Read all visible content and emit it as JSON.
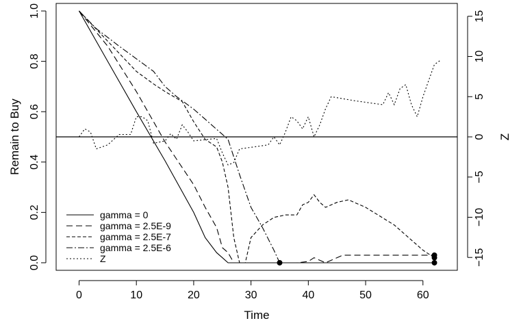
{
  "chart_data": {
    "type": "line",
    "xlabel": "Time",
    "ylabel": "Remain to Buy",
    "y2label": "Z",
    "xlim": [
      -4,
      66
    ],
    "ylim": [
      -0.03,
      1.03
    ],
    "y2lim": [
      -16.6,
      16.6
    ],
    "x_ticks": [
      "0",
      "10",
      "20",
      "30",
      "40",
      "50",
      "60"
    ],
    "y_ticks": [
      "0.0",
      "0.2",
      "0.4",
      "0.6",
      "0.8",
      "1.0"
    ],
    "y2_ticks": [
      "-15",
      "-10",
      "-5",
      "0",
      "5",
      "10",
      "15"
    ],
    "reference_line_y": 0.5,
    "legend_position": "bottom-left",
    "series": [
      {
        "name": "gamma = 0",
        "axis": "left",
        "dash": "",
        "points": [
          [
            0,
            1.0
          ],
          [
            5,
            0.8
          ],
          [
            10,
            0.6
          ],
          [
            15,
            0.405
          ],
          [
            20,
            0.2
          ],
          [
            22,
            0.1
          ],
          [
            24,
            0.04
          ],
          [
            25,
            0.02
          ],
          [
            26,
            0.0
          ],
          [
            62,
            0.0
          ]
        ]
      },
      {
        "name": "gamma = 2.5E-9",
        "axis": "left",
        "dash": "9,5",
        "points": [
          [
            0,
            1.0
          ],
          [
            5,
            0.86
          ],
          [
            10,
            0.68
          ],
          [
            15,
            0.48
          ],
          [
            20,
            0.31
          ],
          [
            22,
            0.22
          ],
          [
            24,
            0.14
          ],
          [
            25,
            0.06
          ],
          [
            26,
            0.04
          ],
          [
            27,
            0.0
          ],
          [
            38,
            0.0
          ],
          [
            40,
            0.005
          ],
          [
            41,
            0.02
          ],
          [
            43,
            0.0
          ],
          [
            46,
            0.03
          ],
          [
            62,
            0.03
          ]
        ]
      },
      {
        "name": "gamma = 2.5E-7",
        "axis": "left",
        "dash": "5,3",
        "points": [
          [
            0,
            1.0
          ],
          [
            5,
            0.88
          ],
          [
            10,
            0.76
          ],
          [
            13,
            0.71
          ],
          [
            15,
            0.68
          ],
          [
            18,
            0.64
          ],
          [
            20,
            0.56
          ],
          [
            22,
            0.49
          ],
          [
            24,
            0.46
          ],
          [
            25,
            0.4
          ],
          [
            26,
            0.3
          ],
          [
            27,
            0.1
          ],
          [
            28,
            0.0
          ],
          [
            29,
            0.0
          ],
          [
            30,
            0.1
          ],
          [
            32,
            0.15
          ],
          [
            34,
            0.18
          ],
          [
            36,
            0.19
          ],
          [
            38,
            0.19
          ],
          [
            39,
            0.23
          ],
          [
            40,
            0.24
          ],
          [
            41,
            0.27
          ],
          [
            42,
            0.24
          ],
          [
            43,
            0.22
          ],
          [
            45,
            0.24
          ],
          [
            47,
            0.25
          ],
          [
            50,
            0.22
          ],
          [
            55,
            0.15
          ],
          [
            60,
            0.05
          ],
          [
            62,
            0.02
          ]
        ]
      },
      {
        "name": "gamma = 2.5E-6",
        "axis": "left",
        "dash": "9,3,2,3",
        "points": [
          [
            0,
            1.0
          ],
          [
            3,
            0.93
          ],
          [
            7,
            0.86
          ],
          [
            10,
            0.81
          ],
          [
            13,
            0.76
          ],
          [
            15,
            0.7
          ],
          [
            17,
            0.66
          ],
          [
            20,
            0.61
          ],
          [
            22,
            0.57
          ],
          [
            24,
            0.53
          ],
          [
            25,
            0.51
          ],
          [
            26,
            0.49
          ],
          [
            28,
            0.35
          ],
          [
            30,
            0.22
          ],
          [
            32,
            0.14
          ],
          [
            34,
            0.05
          ],
          [
            35,
            0.0
          ],
          [
            62,
            0.0
          ]
        ]
      },
      {
        "name": "Z",
        "axis": "right",
        "dash": "2,3",
        "points": [
          [
            0,
            0.0
          ],
          [
            1,
            1.0
          ],
          [
            2,
            0.6
          ],
          [
            3,
            -1.5
          ],
          [
            5,
            -1.0
          ],
          [
            7,
            0.3
          ],
          [
            9,
            0.3
          ],
          [
            10,
            2.5
          ],
          [
            11,
            2.5
          ],
          [
            12,
            2.0
          ],
          [
            13,
            -0.8
          ],
          [
            15,
            -0.5
          ],
          [
            16,
            0.4
          ],
          [
            17,
            -0.3
          ],
          [
            18,
            1.5
          ],
          [
            19,
            0.6
          ],
          [
            20,
            -0.5
          ],
          [
            24,
            -0.2
          ],
          [
            25,
            -2.0
          ],
          [
            26,
            -3.5
          ],
          [
            27,
            -3.2
          ],
          [
            28,
            -1.5
          ],
          [
            30,
            -1.3
          ],
          [
            33,
            -1.0
          ],
          [
            34,
            0.0
          ],
          [
            35,
            -1.0
          ],
          [
            36,
            0.6
          ],
          [
            37,
            2.5
          ],
          [
            38,
            2.0
          ],
          [
            39,
            1.0
          ],
          [
            40,
            2.5
          ],
          [
            41,
            0.0
          ],
          [
            42,
            1.5
          ],
          [
            43,
            3.5
          ],
          [
            44,
            5.0
          ],
          [
            48,
            4.5
          ],
          [
            53,
            4.0
          ],
          [
            54,
            5.5
          ],
          [
            55,
            4.0
          ],
          [
            56,
            6.0
          ],
          [
            57,
            6.5
          ],
          [
            58,
            4.0
          ],
          [
            59,
            2.5
          ],
          [
            60,
            5.0
          ],
          [
            61,
            7.0
          ],
          [
            62,
            9.0
          ],
          [
            63,
            9.5
          ]
        ]
      }
    ],
    "end_markers": [
      [
        35,
        0.0
      ],
      [
        62,
        0.0
      ],
      [
        62,
        0.02
      ],
      [
        62,
        0.03
      ]
    ]
  }
}
